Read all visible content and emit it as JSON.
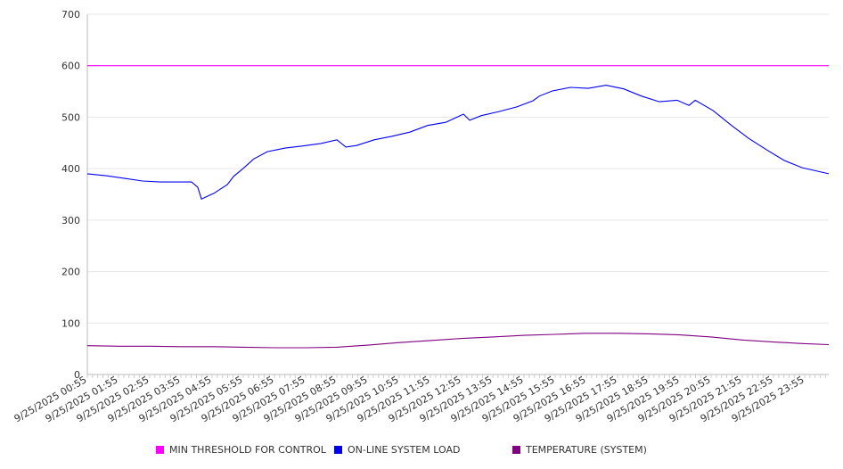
{
  "chart_data": {
    "type": "line",
    "title": "",
    "xlabel": "",
    "ylabel": "",
    "ylim": [
      0,
      700
    ],
    "yticks": [
      "0",
      "100",
      "200",
      "300",
      "400",
      "500",
      "600",
      "700"
    ],
    "xticks": [
      "9/25/2025 00:55",
      "9/25/2025 01:55",
      "9/25/2025 02:55",
      "9/25/2025 03:55",
      "9/25/2025 04:55",
      "9/25/2025 05:55",
      "9/25/2025 06:55",
      "9/25/2025 07:55",
      "9/25/2025 08:55",
      "9/25/2025 09:55",
      "9/25/2025 10:55",
      "9/25/2025 11:55",
      "9/25/2025 12:55",
      "9/25/2025 13:55",
      "9/25/2025 14:55",
      "9/25/2025 15:55",
      "9/25/2025 16:55",
      "9/25/2025 17:55",
      "9/25/2025 18:55",
      "9/25/2025 19:55",
      "9/25/2025 20:55",
      "9/25/2025 21:55",
      "9/25/2025 22:55",
      "9/25/2025 23:55"
    ],
    "xlim_hours_from_first_tick": [
      0,
      23.77
    ],
    "grid": true,
    "legend_position": "bottom",
    "series": [
      {
        "name": "MIN THRESHOLD FOR CONTROL",
        "color": "#ff00ff",
        "x": [
          0,
          23.77
        ],
        "values": [
          600,
          600
        ]
      },
      {
        "name": "ON-LINE SYSTEM LOAD",
        "color": "#0000ee",
        "x": [
          0,
          0.63,
          1.2,
          1.77,
          2.34,
          3.34,
          3.54,
          3.66,
          4.06,
          4.49,
          4.69,
          4.97,
          5.34,
          5.77,
          6.34,
          6.91,
          7.49,
          8.0,
          8.29,
          8.63,
          9.2,
          9.77,
          10.34,
          10.91,
          11.49,
          12.06,
          12.26,
          12.63,
          13.2,
          13.77,
          14.29,
          14.49,
          14.91,
          15.49,
          16.06,
          16.63,
          17.2,
          17.77,
          18.34,
          18.91,
          19.29,
          19.49,
          20.06,
          20.63,
          21.2,
          21.77,
          22.34,
          22.91,
          23.77
        ],
        "values": [
          390,
          386,
          381,
          376,
          374,
          374,
          364,
          341,
          352,
          369,
          385,
          399,
          419,
          433,
          440,
          444,
          449,
          456,
          442,
          445,
          456,
          463,
          471,
          484,
          490,
          506,
          494,
          503,
          511,
          520,
          532,
          541,
          551,
          558,
          556,
          562,
          555,
          541,
          530,
          533,
          523,
          533,
          513,
          485,
          459,
          437,
          416,
          402,
          390
        ]
      },
      {
        "name": "TEMPERATURE (SYSTEM)",
        "color": "#800080",
        "x": [
          0,
          1,
          2,
          3,
          4,
          5,
          6,
          7,
          8,
          9,
          10,
          11,
          12,
          13,
          14,
          15,
          16,
          17,
          18,
          19,
          20,
          21,
          22,
          23,
          23.77
        ],
        "values": [
          56,
          55,
          55,
          54,
          54,
          53,
          52,
          52,
          53,
          57,
          62,
          66,
          70,
          73,
          76,
          78,
          80,
          80,
          79,
          77,
          73,
          67,
          63,
          60,
          58
        ]
      }
    ]
  }
}
